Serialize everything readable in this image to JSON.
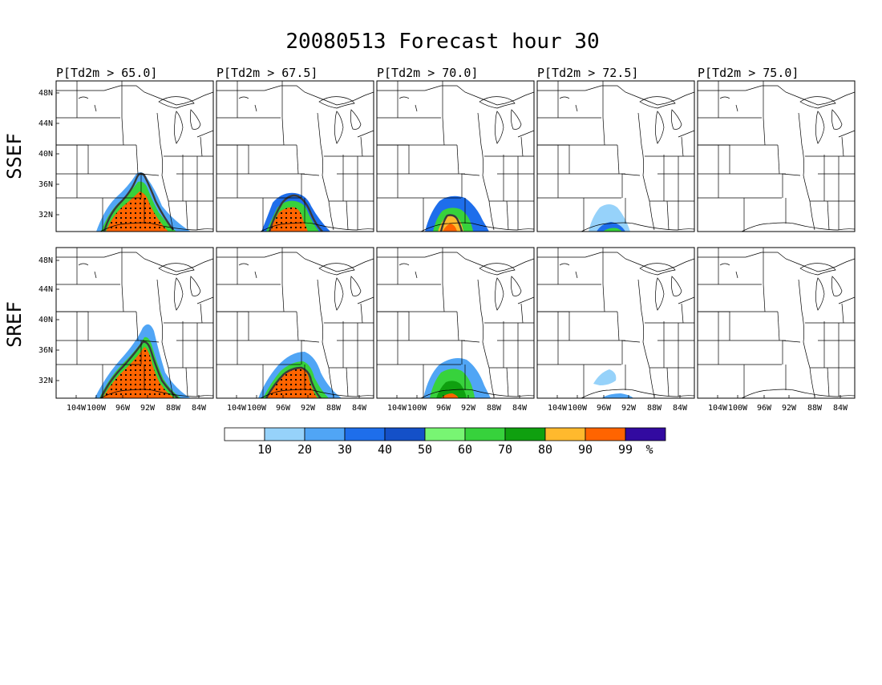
{
  "title": "20080513 Forecast hour 30",
  "columns": [
    {
      "label": "P[Td2m > 65.0]"
    },
    {
      "label": "P[Td2m > 67.5]"
    },
    {
      "label": "P[Td2m > 70.0]"
    },
    {
      "label": "P[Td2m > 72.5]"
    },
    {
      "label": "P[Td2m > 75.0]"
    }
  ],
  "rows": [
    {
      "label": "SSEF"
    },
    {
      "label": "SREF"
    }
  ],
  "lat_ticks": [
    "48N",
    "44N",
    "40N",
    "36N",
    "32N"
  ],
  "lon_ticks": [
    "104W",
    "100W",
    "96W",
    "92W",
    "88W",
    "84W"
  ],
  "colorbar": {
    "labels": [
      "10",
      "20",
      "30",
      "40",
      "50",
      "60",
      "70",
      "80",
      "90",
      "99"
    ],
    "unit": "%",
    "colors": [
      "#ffffff",
      "#96d2fa",
      "#50a5f5",
      "#1e6eeb",
      "#1450c8",
      "#78f573",
      "#37d23c",
      "#0fa00f",
      "#ffb92d",
      "#ff6400",
      "#320aa0"
    ]
  }
}
